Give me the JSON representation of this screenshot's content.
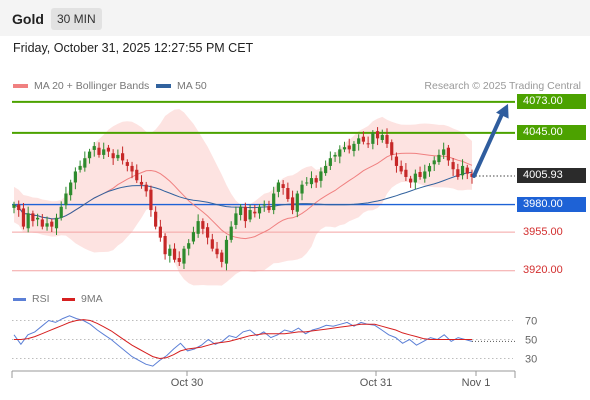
{
  "header": {
    "asset": "Gold",
    "timeframe": "30 MIN",
    "datetime": "Friday, October 31, 2025 12:27:55 PM CET"
  },
  "legend": {
    "ma20": "MA 20 + Bollinger Bands",
    "ma50": "MA 50",
    "copyright": "Research © 2025 Trading Central"
  },
  "rsi_legend": {
    "rsi": "RSI",
    "ma": "9MA"
  },
  "colors": {
    "bull": "#2e8b2e",
    "bear": "#c62828",
    "ma20": "#f08080",
    "ma50": "#31629e",
    "band": "#fde3e1",
    "target": "#4ca200",
    "pivot": "#1e62d6",
    "support": "#f4a3a3",
    "arrow": "#2f5d9e",
    "rsi": "#5b7fd6",
    "rsi_ma": "#d62020"
  },
  "chart_data": {
    "type": "candlestick",
    "instrument": "Gold",
    "timeframe": "30 MIN",
    "price_range": [
      3908,
      4082
    ],
    "x_ticks": [
      "Oct 30",
      "Oct 31",
      "Nov 1"
    ],
    "current_price": "4005.93",
    "levels": [
      {
        "label": "4073.00",
        "value": 4073,
        "kind": "resistance"
      },
      {
        "label": "4045.00",
        "value": 4045,
        "kind": "resistance"
      },
      {
        "label": "3980.00",
        "value": 3980,
        "kind": "pivot"
      },
      {
        "label": "3955.00",
        "value": 3955,
        "kind": "support"
      },
      {
        "label": "3920.00",
        "value": 3920,
        "kind": "support"
      }
    ],
    "closes": [
      3980,
      3975,
      3960,
      3972,
      3965,
      3968,
      3960,
      3963,
      3960,
      3968,
      3978,
      3990,
      4000,
      4010,
      4015,
      4022,
      4028,
      4033,
      4025,
      4030,
      4028,
      4022,
      4025,
      4020,
      4015,
      4010,
      4002,
      3998,
      3992,
      3975,
      3960,
      3950,
      3935,
      3940,
      3930,
      3928,
      3940,
      3945,
      3955,
      3965,
      3958,
      3950,
      3940,
      3935,
      3928,
      3948,
      3960,
      3972,
      3978,
      3965,
      3975,
      3972,
      3978,
      3980,
      3975,
      3990,
      4000,
      3995,
      3985,
      3975,
      3990,
      3998,
      4000,
      4004,
      4000,
      4010,
      4015,
      4022,
      4025,
      4030,
      4032,
      4030,
      4035,
      4040,
      4037,
      4035,
      4045,
      4040,
      4043,
      4035,
      4025,
      4015,
      4010,
      4005,
      4000,
      4008,
      4005,
      4010,
      4015,
      4020,
      4025,
      4030,
      4020,
      4012,
      4005,
      4015,
      4008,
      4005
    ],
    "rsi_axis": [
      30,
      50,
      70
    ],
    "rsi": [
      55,
      45,
      55,
      58,
      64,
      70,
      68,
      72,
      75,
      72,
      70,
      66,
      60,
      55,
      50,
      44,
      38,
      32,
      28,
      24,
      22,
      28,
      33,
      40,
      46,
      38,
      40,
      44,
      50,
      45,
      48,
      54,
      52,
      58,
      60,
      54,
      58,
      52,
      55,
      60,
      58,
      62,
      56,
      60,
      62,
      65,
      64,
      66,
      68,
      64,
      68,
      66,
      65,
      60,
      55,
      52,
      46,
      50,
      44,
      48,
      52,
      50,
      55,
      48,
      52,
      50,
      48
    ],
    "rsi_ma": [
      50,
      50,
      51,
      53,
      56,
      59,
      62,
      65,
      68,
      70,
      71,
      70,
      67,
      63,
      59,
      54,
      49,
      44,
      40,
      36,
      32,
      30,
      31,
      34,
      38,
      40,
      41,
      42,
      44,
      46,
      47,
      48,
      50,
      52,
      54,
      55,
      56,
      56,
      56,
      56,
      57,
      58,
      58,
      59,
      60,
      61,
      62,
      63,
      64,
      65,
      66,
      66,
      66,
      64,
      62,
      60,
      57,
      55,
      53,
      51,
      50,
      50,
      50,
      50,
      50,
      50,
      50
    ]
  }
}
